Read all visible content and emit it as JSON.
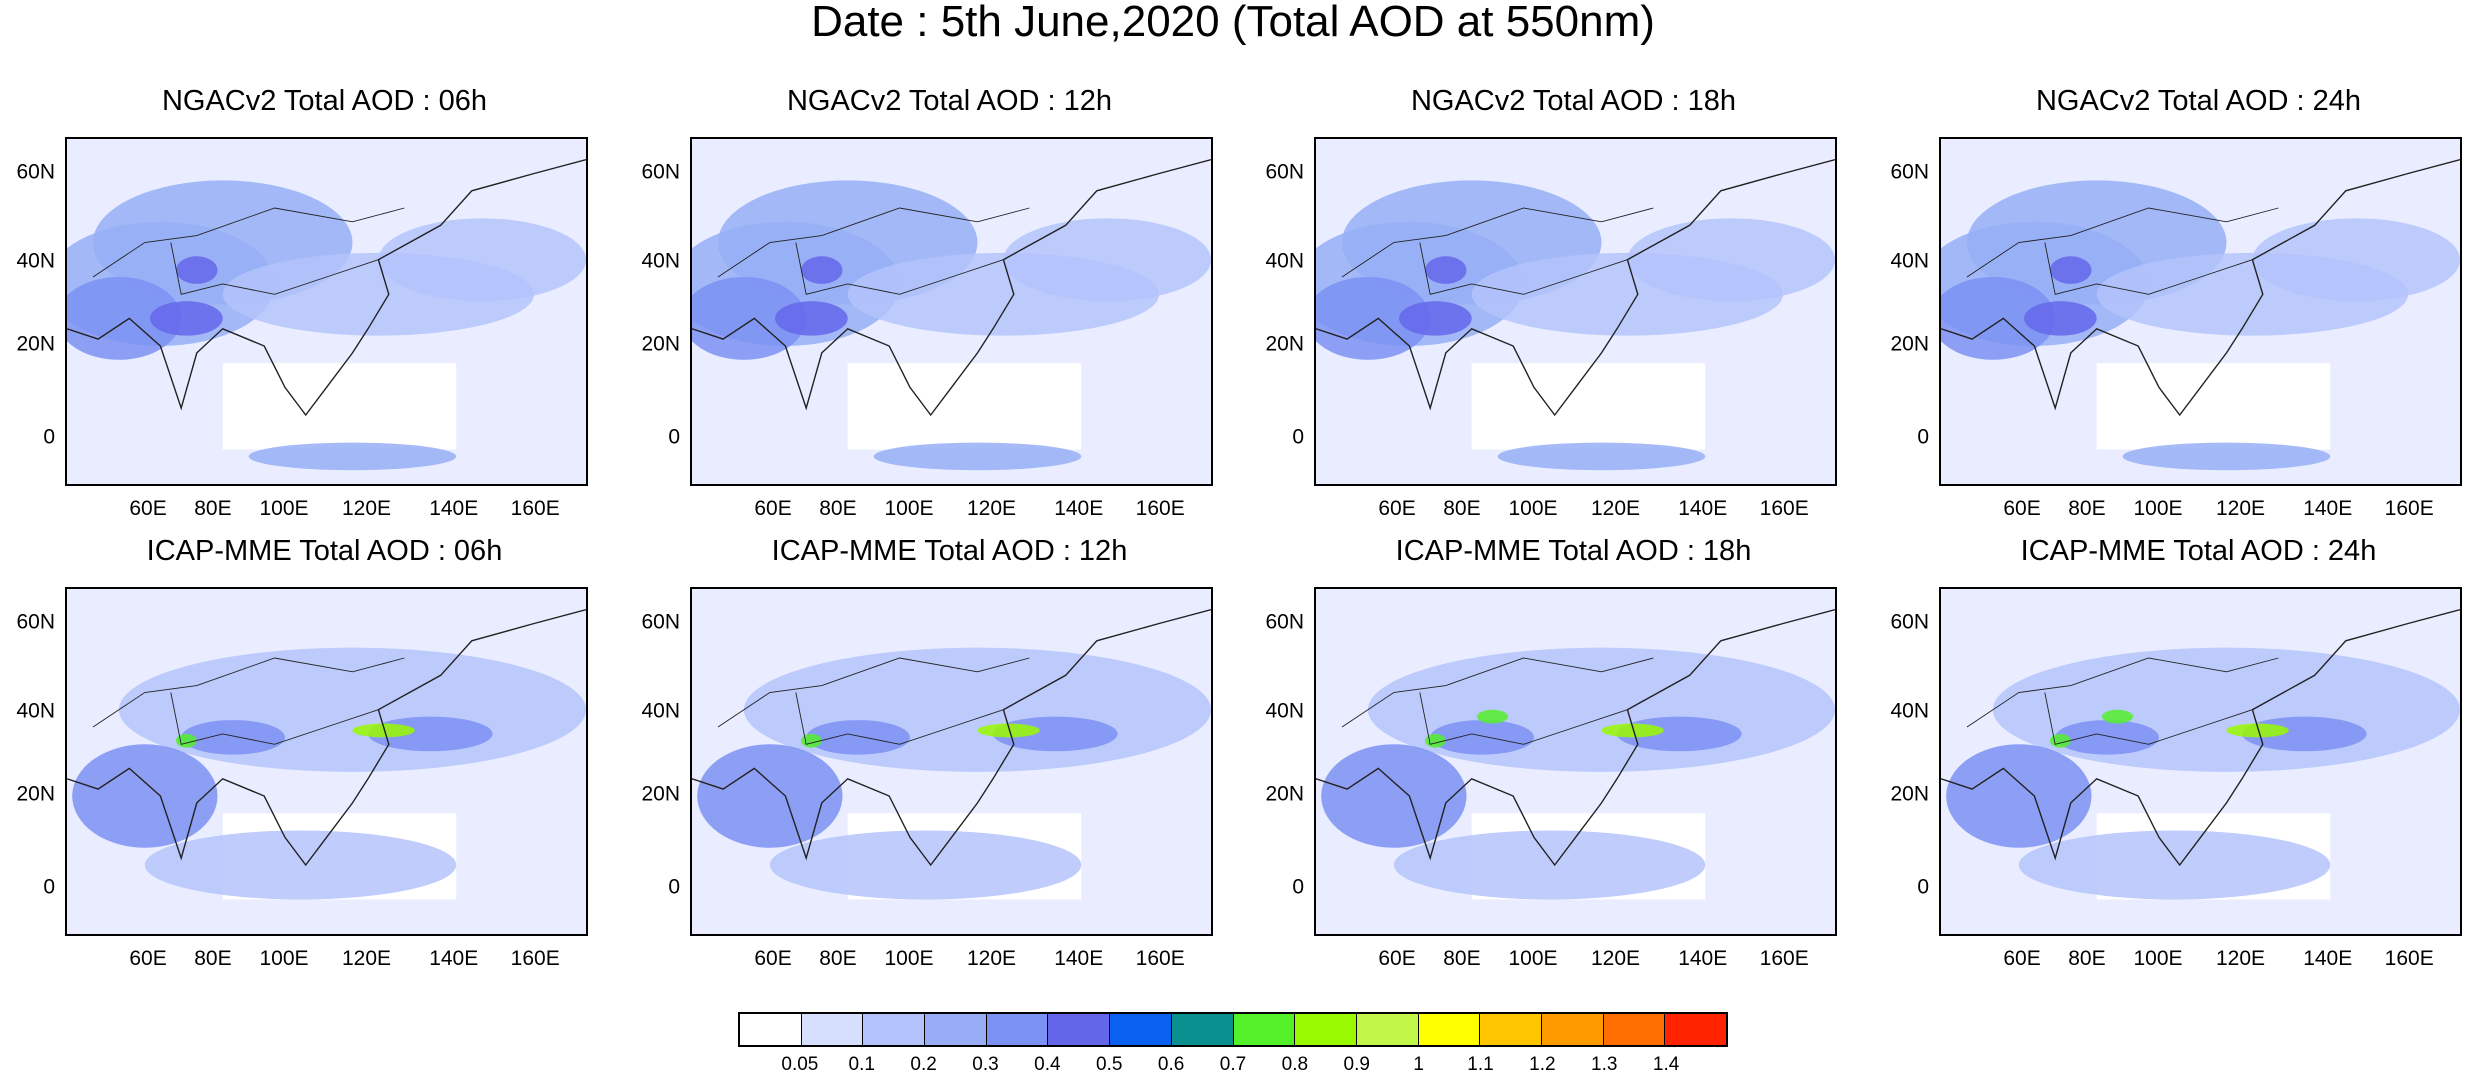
{
  "title": "Date : 5th June,2020 (Total AOD at 550nm)",
  "panels": [
    {
      "title": "NGACv2 Total AOD : 06h",
      "row": 0,
      "col": 0
    },
    {
      "title": "NGACv2 Total AOD : 12h",
      "row": 0,
      "col": 1
    },
    {
      "title": "NGACv2 Total AOD : 18h",
      "row": 0,
      "col": 2
    },
    {
      "title": "NGACv2 Total AOD : 24h",
      "row": 0,
      "col": 3
    },
    {
      "title": "ICAP-MME Total AOD : 06h",
      "row": 1,
      "col": 0
    },
    {
      "title": "ICAP-MME Total AOD : 12h",
      "row": 1,
      "col": 1
    },
    {
      "title": "ICAP-MME Total AOD : 18h",
      "row": 1,
      "col": 2
    },
    {
      "title": "ICAP-MME Total AOD : 24h",
      "row": 1,
      "col": 3
    }
  ],
  "lon_ticks": [
    "60E",
    "80E",
    "100E",
    "120E",
    "140E",
    "160E"
  ],
  "lat_ticks": [
    "60N",
    "40N",
    "20N",
    "0"
  ],
  "colorbar": {
    "labels": [
      "0.05",
      "0.1",
      "0.2",
      "0.3",
      "0.4",
      "0.5",
      "0.6",
      "0.7",
      "0.8",
      "0.9",
      "1",
      "1.1",
      "1.2",
      "1.3",
      "1.4"
    ],
    "colors": [
      "#ffffff",
      "#d6dffd",
      "#b4c3fb",
      "#97aef6",
      "#7b91f3",
      "#6466ea",
      "#0a60f0",
      "#09908f",
      "#54f02a",
      "#99f900",
      "#c2f74a",
      "#ffff00",
      "#ffc500",
      "#ff9a00",
      "#ff6e00",
      "#ff2300"
    ]
  }
}
